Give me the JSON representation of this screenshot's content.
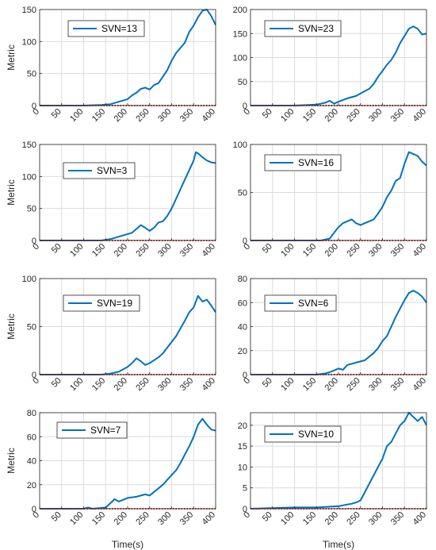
{
  "colors": {
    "signal": "#0072BD",
    "threshold": "#D62728",
    "axis": "#262626",
    "grid": "#dcdcdc"
  },
  "chart_data": [
    {
      "type": "line",
      "legend": "SVN=13",
      "ylabel": "Metric",
      "xlabel": "",
      "xlim": [
        0,
        400
      ],
      "ylim": [
        0,
        150
      ],
      "xticks": [
        "0",
        "50",
        "100",
        "150",
        "200",
        "250",
        "300",
        "350",
        "400"
      ],
      "yticks": [
        "0",
        "50",
        "100",
        "150"
      ],
      "grid": true,
      "series": [
        {
          "name": "SVN=13",
          "x": [
            0,
            100,
            140,
            160,
            180,
            200,
            210,
            220,
            230,
            240,
            250,
            260,
            270,
            280,
            290,
            300,
            310,
            320,
            330,
            340,
            350,
            360,
            370,
            380,
            390,
            400
          ],
          "y": [
            0,
            0,
            1,
            2,
            6,
            10,
            16,
            20,
            26,
            28,
            25,
            32,
            35,
            45,
            55,
            70,
            82,
            90,
            98,
            115,
            125,
            138,
            148,
            150,
            140,
            126
          ]
        },
        {
          "name": "threshold",
          "style": "dotted",
          "x": [
            0,
            400
          ],
          "y": [
            0,
            0
          ]
        }
      ]
    },
    {
      "type": "line",
      "legend": "SVN=23",
      "ylabel": "",
      "xlabel": "",
      "xlim": [
        0,
        400
      ],
      "ylim": [
        0,
        200
      ],
      "xticks": [
        "0",
        "50",
        "100",
        "150",
        "200",
        "250",
        "300",
        "350",
        "400"
      ],
      "yticks": [
        "0",
        "50",
        "100",
        "150",
        "200"
      ],
      "grid": true,
      "series": [
        {
          "name": "SVN=23",
          "x": [
            0,
            100,
            150,
            170,
            180,
            190,
            200,
            220,
            240,
            260,
            270,
            280,
            290,
            300,
            310,
            320,
            330,
            340,
            350,
            360,
            370,
            380,
            390,
            400
          ],
          "y": [
            0,
            0,
            2,
            6,
            10,
            4,
            8,
            15,
            20,
            30,
            35,
            45,
            60,
            72,
            85,
            95,
            110,
            130,
            145,
            160,
            165,
            160,
            148,
            150
          ]
        },
        {
          "name": "threshold",
          "style": "dotted",
          "x": [
            0,
            400
          ],
          "y": [
            0,
            0
          ]
        }
      ]
    },
    {
      "type": "line",
      "legend": "SVN=3",
      "ylabel": "Metric",
      "xlabel": "",
      "xlim": [
        0,
        400
      ],
      "ylim": [
        0,
        150
      ],
      "xticks": [
        "0",
        "50",
        "100",
        "150",
        "200",
        "250",
        "300",
        "350",
        "400"
      ],
      "yticks": [
        "0",
        "50",
        "100",
        "150"
      ],
      "grid": true,
      "series": [
        {
          "name": "SVN=3",
          "x": [
            0,
            140,
            160,
            180,
            200,
            210,
            220,
            230,
            240,
            250,
            260,
            270,
            280,
            290,
            300,
            310,
            320,
            330,
            340,
            350,
            355,
            360,
            370,
            380,
            390,
            400
          ],
          "y": [
            0,
            0,
            2,
            6,
            10,
            12,
            18,
            24,
            20,
            15,
            20,
            28,
            30,
            38,
            50,
            65,
            80,
            95,
            110,
            125,
            138,
            136,
            130,
            125,
            122,
            121
          ]
        },
        {
          "name": "threshold",
          "style": "dotted",
          "x": [
            0,
            400
          ],
          "y": [
            0,
            0
          ]
        }
      ]
    },
    {
      "type": "line",
      "legend": "SVN=16",
      "ylabel": "",
      "xlabel": "",
      "xlim": [
        0,
        400
      ],
      "ylim": [
        0,
        100
      ],
      "xticks": [
        "0",
        "50",
        "100",
        "150",
        "200",
        "250",
        "300",
        "350",
        "400"
      ],
      "yticks": [
        "0",
        "50",
        "100"
      ],
      "grid": true,
      "series": [
        {
          "name": "SVN=16",
          "x": [
            0,
            160,
            180,
            190,
            200,
            210,
            220,
            230,
            240,
            250,
            260,
            270,
            280,
            290,
            300,
            310,
            320,
            330,
            340,
            350,
            360,
            370,
            380,
            390,
            400
          ],
          "y": [
            0,
            0,
            2,
            8,
            14,
            18,
            20,
            22,
            18,
            16,
            18,
            20,
            22,
            28,
            35,
            45,
            52,
            62,
            65,
            80,
            92,
            90,
            88,
            82,
            78
          ]
        },
        {
          "name": "threshold",
          "style": "dotted",
          "x": [
            0,
            400
          ],
          "y": [
            0,
            0
          ]
        }
      ]
    },
    {
      "type": "line",
      "legend": "SVN=19",
      "ylabel": "Metric",
      "xlabel": "",
      "xlim": [
        0,
        400
      ],
      "ylim": [
        0,
        100
      ],
      "xticks": [
        "0",
        "50",
        "100",
        "150",
        "200",
        "250",
        "300",
        "350",
        "400"
      ],
      "yticks": [
        "0",
        "50",
        "100"
      ],
      "grid": true,
      "series": [
        {
          "name": "SVN=19",
          "x": [
            0,
            140,
            160,
            180,
            200,
            210,
            220,
            230,
            240,
            250,
            260,
            270,
            280,
            290,
            300,
            310,
            320,
            330,
            340,
            350,
            360,
            370,
            380,
            390,
            400
          ],
          "y": [
            0,
            0,
            1,
            3,
            8,
            12,
            17,
            14,
            10,
            12,
            15,
            18,
            22,
            28,
            34,
            40,
            48,
            56,
            65,
            70,
            82,
            76,
            78,
            72,
            65
          ]
        },
        {
          "name": "threshold",
          "style": "dotted",
          "x": [
            0,
            400
          ],
          "y": [
            0,
            0
          ]
        }
      ]
    },
    {
      "type": "line",
      "legend": "SVN=6",
      "ylabel": "",
      "xlabel": "",
      "xlim": [
        0,
        400
      ],
      "ylim": [
        0,
        80
      ],
      "xticks": [
        "0",
        "50",
        "100",
        "150",
        "200",
        "250",
        "300",
        "350",
        "400"
      ],
      "yticks": [
        "0",
        "20",
        "40",
        "60",
        "80"
      ],
      "grid": true,
      "series": [
        {
          "name": "SVN=6",
          "x": [
            0,
            150,
            170,
            180,
            200,
            210,
            220,
            240,
            260,
            270,
            280,
            290,
            300,
            310,
            320,
            330,
            340,
            350,
            360,
            370,
            380,
            390,
            400
          ],
          "y": [
            0,
            0,
            1,
            2,
            5,
            4,
            8,
            10,
            12,
            15,
            18,
            22,
            28,
            32,
            40,
            48,
            55,
            62,
            68,
            70,
            68,
            65,
            60
          ]
        },
        {
          "name": "threshold",
          "style": "dotted",
          "x": [
            0,
            400
          ],
          "y": [
            0,
            0
          ]
        }
      ]
    },
    {
      "type": "line",
      "legend": "SVN=7",
      "ylabel": "Metric",
      "xlabel": "Time(s)",
      "xlim": [
        0,
        400
      ],
      "ylim": [
        0,
        80
      ],
      "xticks": [
        "0",
        "50",
        "100",
        "150",
        "200",
        "250",
        "300",
        "350",
        "400"
      ],
      "yticks": [
        "0",
        "20",
        "40",
        "60",
        "80"
      ],
      "grid": true,
      "series": [
        {
          "name": "SVN=7",
          "x": [
            0,
            100,
            110,
            120,
            150,
            165,
            170,
            180,
            200,
            220,
            240,
            250,
            260,
            270,
            280,
            290,
            300,
            310,
            320,
            330,
            340,
            350,
            360,
            370,
            380,
            390,
            400
          ],
          "y": [
            0,
            0,
            1,
            0,
            1,
            6,
            8,
            6,
            9,
            10,
            12,
            11,
            14,
            17,
            20,
            24,
            28,
            32,
            38,
            45,
            52,
            60,
            70,
            75,
            70,
            66,
            65
          ]
        },
        {
          "name": "threshold",
          "style": "dotted",
          "x": [
            0,
            400
          ],
          "y": [
            0,
            0
          ]
        }
      ]
    },
    {
      "type": "line",
      "legend": "SVN=10",
      "ylabel": "",
      "xlabel": "Time(s)",
      "xlim": [
        0,
        400
      ],
      "ylim": [
        0,
        23
      ],
      "xticks": [
        "0",
        "50",
        "100",
        "150",
        "200",
        "250",
        "300",
        "350",
        "400"
      ],
      "yticks": [
        "0",
        "5",
        "10",
        "15",
        "20"
      ],
      "grid": true,
      "series": [
        {
          "name": "SVN=10",
          "x": [
            0,
            100,
            150,
            200,
            230,
            240,
            250,
            260,
            270,
            280,
            290,
            300,
            310,
            320,
            330,
            340,
            350,
            360,
            370,
            380,
            390,
            400
          ],
          "y": [
            0,
            0.3,
            0.3,
            0.6,
            1.2,
            1.5,
            2,
            4,
            6,
            8,
            10,
            12,
            15,
            16,
            18,
            20,
            21,
            23,
            22,
            21,
            22,
            20
          ]
        },
        {
          "name": "threshold",
          "style": "dotted",
          "x": [
            0,
            400
          ],
          "y": [
            0,
            0
          ]
        }
      ]
    }
  ]
}
